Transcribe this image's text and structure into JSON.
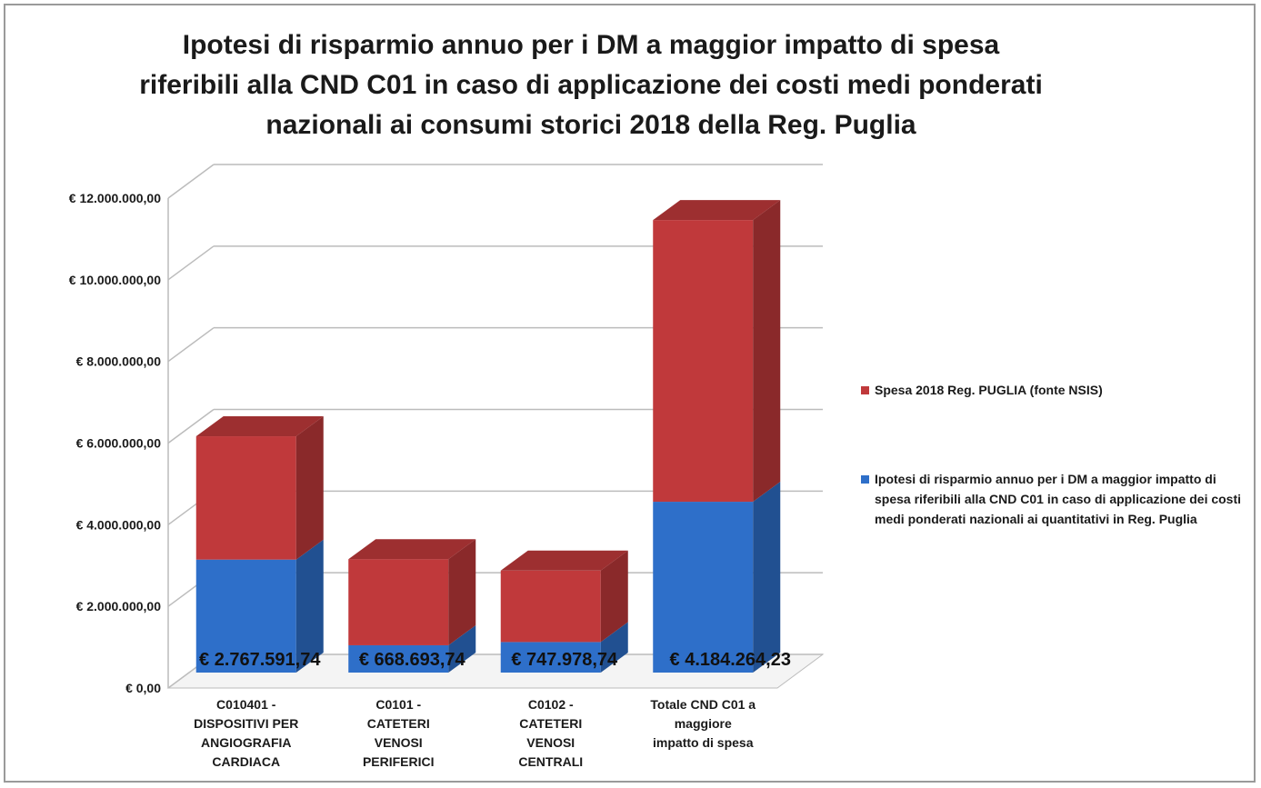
{
  "chart_data": {
    "type": "bar",
    "stacked": true,
    "title": "Ipotesi di risparmio annuo per i DM a maggior impatto di spesa\nriferibili alla CND C01 in caso di applicazione dei costi medi ponderati\nnazionali ai consumi storici 2018 della Reg. Puglia",
    "categories": [
      "C010401 -\nDISPOSITIVI PER\nANGIOGRAFIA\nCARDIACA",
      "C0101 -\nCATETERI\nVENOSI\nPERIFERICI",
      "C0102 -\nCATETERI\nVENOSI\nCENTRALI",
      "Totale CND C01 a\nmaggiore\nimpatto di spesa"
    ],
    "series": [
      {
        "name": "Ipotesi di risparmio annuo per i DM a maggior impatto di spesa riferibili alla CND C01 in caso di applicazione dei costi medi ponderati nazionali ai quantitativi in Reg. Puglia",
        "color": "#2e6fc9",
        "values": [
          2767591.74,
          668693.74,
          747978.74,
          4184264.23
        ],
        "value_labels": [
          "€ 2.767.591,74",
          "€ 668.693,74",
          "€ 747.978,74",
          "€ 4.184.264,23"
        ]
      },
      {
        "name": "Spesa 2018  Reg. PUGLIA (fonte NSIS)",
        "color": "#c0393b",
        "values": [
          3020000,
          2110000,
          1750000,
          6900000
        ]
      }
    ],
    "ylim": [
      0,
      12000000
    ],
    "yticks": [
      {
        "value": 0,
        "label": "€ 0,00"
      },
      {
        "value": 2000000,
        "label": "€ 2.000.000,00"
      },
      {
        "value": 4000000,
        "label": "€ 4.000.000,00"
      },
      {
        "value": 6000000,
        "label": "€ 6.000.000,00"
      },
      {
        "value": 8000000,
        "label": "€ 8.000.000,00"
      },
      {
        "value": 10000000,
        "label": "€ 10.000.000,00"
      },
      {
        "value": 12000000,
        "label": "€ 12.000.000,00"
      }
    ],
    "grid": true,
    "legend": "right"
  }
}
